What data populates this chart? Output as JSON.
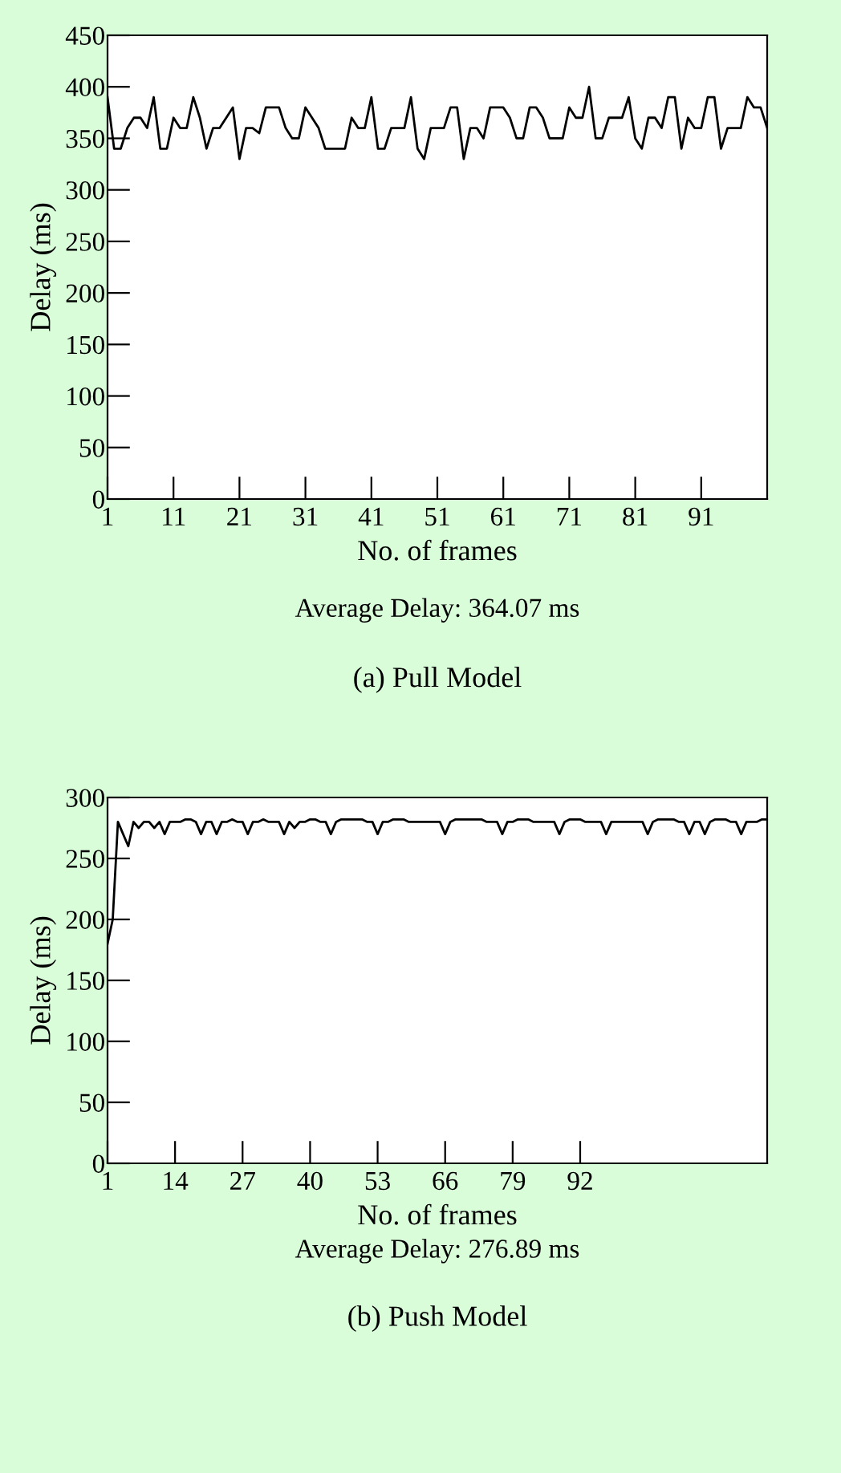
{
  "chart_data": [
    {
      "type": "line",
      "xlabel": "No. of frames",
      "ylabel": "Delay (ms)",
      "annotations": [
        "Average Delay: 364.07 ms",
        "(a) Pull Model"
      ],
      "xlim": [
        1,
        101
      ],
      "xticks": [
        1,
        11,
        21,
        31,
        41,
        51,
        61,
        71,
        81,
        91
      ],
      "ylim": [
        0,
        450
      ],
      "yticks": [
        0,
        50,
        100,
        150,
        200,
        250,
        300,
        350,
        400,
        450
      ],
      "grid": false,
      "legend": false,
      "marker": "none",
      "line_style": "solid",
      "series": [
        {
          "color": "#000000",
          "x": [
            1,
            2,
            3,
            4,
            5,
            6,
            7,
            8,
            9,
            10,
            11,
            12,
            13,
            14,
            15,
            16,
            17,
            18,
            19,
            20,
            21,
            22,
            23,
            24,
            25,
            26,
            27,
            28,
            29,
            30,
            31,
            32,
            33,
            34,
            35,
            36,
            37,
            38,
            39,
            40,
            41,
            42,
            43,
            44,
            45,
            46,
            47,
            48,
            49,
            50,
            51,
            52,
            53,
            54,
            55,
            56,
            57,
            58,
            59,
            60,
            61,
            62,
            63,
            64,
            65,
            66,
            67,
            68,
            69,
            70,
            71,
            72,
            73,
            74,
            75,
            76,
            77,
            78,
            79,
            80,
            81,
            82,
            83,
            84,
            85,
            86,
            87,
            88,
            89,
            90,
            91,
            92,
            93,
            94,
            95,
            96,
            97,
            98,
            99,
            100,
            101
          ],
          "values": [
            390,
            340,
            340,
            360,
            370,
            370,
            360,
            390,
            340,
            340,
            370,
            360,
            360,
            390,
            370,
            340,
            360,
            360,
            370,
            380,
            330,
            360,
            360,
            355,
            380,
            380,
            380,
            360,
            350,
            350,
            380,
            370,
            360,
            340,
            340,
            340,
            340,
            370,
            360,
            360,
            390,
            340,
            340,
            360,
            360,
            360,
            390,
            340,
            330,
            360,
            360,
            360,
            380,
            380,
            330,
            360,
            360,
            350,
            380,
            380,
            380,
            370,
            350,
            350,
            380,
            380,
            370,
            350,
            350,
            350,
            380,
            370,
            370,
            400,
            350,
            350,
            370,
            370,
            370,
            390,
            350,
            340,
            370,
            370,
            360,
            390,
            390,
            340,
            370,
            360,
            360,
            390,
            390,
            340,
            360,
            360,
            360,
            390,
            380,
            380,
            360
          ]
        }
      ]
    },
    {
      "type": "line",
      "xlabel": "No. of frames",
      "ylabel": "Delay (ms)",
      "annotations": [
        "Average Delay: 276.89 ms",
        "(b) Push Model"
      ],
      "xlim": [
        1,
        128
      ],
      "xticks": [
        1,
        14,
        27,
        40,
        53,
        66,
        79,
        92
      ],
      "ylim": [
        0,
        300
      ],
      "yticks": [
        0,
        50,
        100,
        150,
        200,
        250,
        300
      ],
      "grid": false,
      "legend": false,
      "marker": "none",
      "line_style": "solid",
      "series": [
        {
          "color": "#000000",
          "x": [
            1,
            2,
            3,
            4,
            5,
            6,
            7,
            8,
            9,
            10,
            11,
            12,
            13,
            14,
            15,
            16,
            17,
            18,
            19,
            20,
            21,
            22,
            23,
            24,
            25,
            26,
            27,
            28,
            29,
            30,
            31,
            32,
            33,
            34,
            35,
            36,
            37,
            38,
            39,
            40,
            41,
            42,
            43,
            44,
            45,
            46,
            47,
            48,
            49,
            50,
            51,
            52,
            53,
            54,
            55,
            56,
            57,
            58,
            59,
            60,
            61,
            62,
            63,
            64,
            65,
            66,
            67,
            68,
            69,
            70,
            71,
            72,
            73,
            74,
            75,
            76,
            77,
            78,
            79,
            80,
            81,
            82,
            83,
            84,
            85,
            86,
            87,
            88,
            89,
            90,
            91,
            92,
            93,
            94,
            95,
            96,
            97,
            98,
            99,
            100,
            101,
            102,
            103,
            104,
            105,
            106,
            107,
            108,
            109,
            110,
            111,
            112,
            113,
            114,
            115,
            116,
            117,
            118,
            119,
            120,
            121,
            122,
            123,
            124,
            125,
            126,
            127,
            128
          ],
          "values": [
            180,
            200,
            280,
            270,
            260,
            280,
            275,
            280,
            280,
            275,
            280,
            270,
            280,
            280,
            280,
            282,
            282,
            280,
            270,
            280,
            280,
            270,
            280,
            280,
            282,
            280,
            280,
            270,
            280,
            280,
            282,
            280,
            280,
            280,
            270,
            280,
            275,
            280,
            280,
            282,
            282,
            280,
            280,
            270,
            280,
            282,
            282,
            282,
            282,
            282,
            280,
            280,
            270,
            280,
            280,
            282,
            282,
            282,
            280,
            280,
            280,
            280,
            280,
            280,
            280,
            270,
            280,
            282,
            282,
            282,
            282,
            282,
            282,
            280,
            280,
            280,
            270,
            280,
            280,
            282,
            282,
            282,
            280,
            280,
            280,
            280,
            280,
            270,
            280,
            282,
            282,
            282,
            280,
            280,
            280,
            280,
            270,
            280,
            280,
            280,
            280,
            280,
            280,
            280,
            270,
            280,
            282,
            282,
            282,
            282,
            280,
            280,
            270,
            280,
            280,
            270,
            280,
            282,
            282,
            282,
            280,
            280,
            270,
            280,
            280,
            280,
            282,
            282
          ]
        }
      ]
    }
  ]
}
